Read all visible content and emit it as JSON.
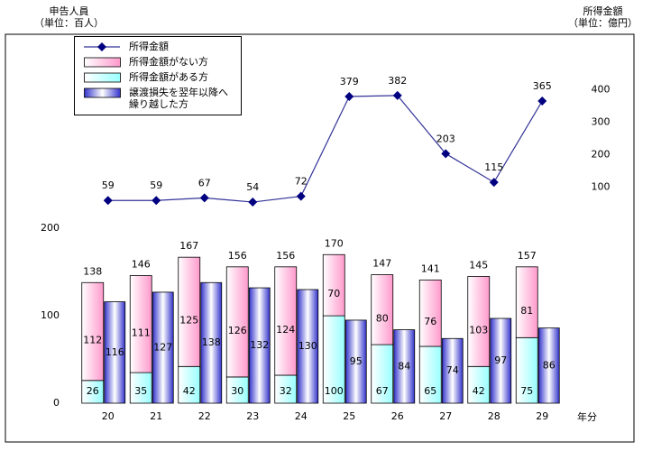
{
  "chart_data": {
    "type": "bar",
    "ylabel": "申告人員\n（単位：百人）",
    "y2label": "所得金額\n（単位：億円）",
    "xlabel": "年分",
    "categories": [
      "20",
      "21",
      "22",
      "23",
      "24",
      "25",
      "26",
      "27",
      "28",
      "29"
    ],
    "ylim": [
      0,
      420
    ],
    "yticks": [
      0,
      100,
      200
    ],
    "y2lim": [
      -565,
      565
    ],
    "y2ticks": [
      100,
      200,
      300,
      400
    ],
    "series": [
      {
        "name": "所得金額",
        "type": "line",
        "axis": "y2",
        "color": "#333399",
        "values": [
          59,
          59,
          67,
          54,
          72,
          379,
          382,
          203,
          115,
          365
        ]
      },
      {
        "name": "所得金額がない方",
        "type": "bar",
        "stack": "a",
        "color": "#ff99cc",
        "values": [
          112,
          111,
          125,
          126,
          124,
          70,
          80,
          76,
          103,
          81
        ]
      },
      {
        "name": "所得金額がある方",
        "type": "bar",
        "stack": "a",
        "color": "#99ffff",
        "values": [
          26,
          35,
          42,
          30,
          32,
          100,
          67,
          65,
          42,
          75
        ]
      },
      {
        "name": "譲渡損失を翌年以降へ\n繰り越した方",
        "type": "bar",
        "color": "#3333cc",
        "values": [
          116,
          127,
          138,
          132,
          130,
          95,
          84,
          74,
          97,
          86
        ]
      }
    ],
    "totals": [
      138,
      146,
      167,
      156,
      156,
      170,
      147,
      141,
      145,
      157
    ]
  }
}
